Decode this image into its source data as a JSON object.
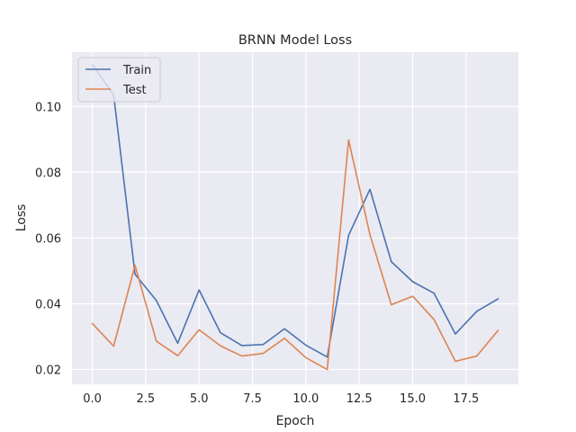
{
  "chart_data": {
    "type": "line",
    "title": "BRNN Model  Loss",
    "xlabel": "Epoch",
    "ylabel": "Loss",
    "x": [
      0,
      1,
      2,
      3,
      4,
      5,
      6,
      7,
      8,
      9,
      10,
      11,
      12,
      13,
      14,
      15,
      16,
      17,
      18,
      19
    ],
    "xlim": [
      -0.95,
      19.95
    ],
    "ylim": [
      0.0155,
      0.1165
    ],
    "xticks": [
      0.0,
      2.5,
      5.0,
      7.5,
      10.0,
      12.5,
      15.0,
      17.5
    ],
    "xtick_labels": [
      "0.0",
      "2.5",
      "5.0",
      "7.5",
      "10.0",
      "12.5",
      "15.0",
      "17.5"
    ],
    "yticks": [
      0.02,
      0.04,
      0.06,
      0.08,
      0.1
    ],
    "ytick_labels": [
      "0.02",
      "0.04",
      "0.06",
      "0.08",
      "0.10"
    ],
    "grid": true,
    "legend_position": "top-left",
    "background_color": "#eaeaf2",
    "grid_color": "#ffffff",
    "series": [
      {
        "name": "Train",
        "color": "#4c72b0",
        "values": [
          0.1128,
          0.1035,
          0.049,
          0.041,
          0.028,
          0.0442,
          0.0312,
          0.0273,
          0.0276,
          0.0324,
          0.0274,
          0.0238,
          0.0608,
          0.0748,
          0.0528,
          0.0467,
          0.0432,
          0.0308,
          0.0377,
          0.0415
        ]
      },
      {
        "name": "Test",
        "color": "#dd8452",
        "values": [
          0.034,
          0.0271,
          0.0517,
          0.0286,
          0.0242,
          0.0321,
          0.0272,
          0.0241,
          0.0249,
          0.0295,
          0.0236,
          0.02,
          0.0898,
          0.061,
          0.0397,
          0.0423,
          0.0352,
          0.0225,
          0.0241,
          0.0319
        ]
      }
    ]
  }
}
